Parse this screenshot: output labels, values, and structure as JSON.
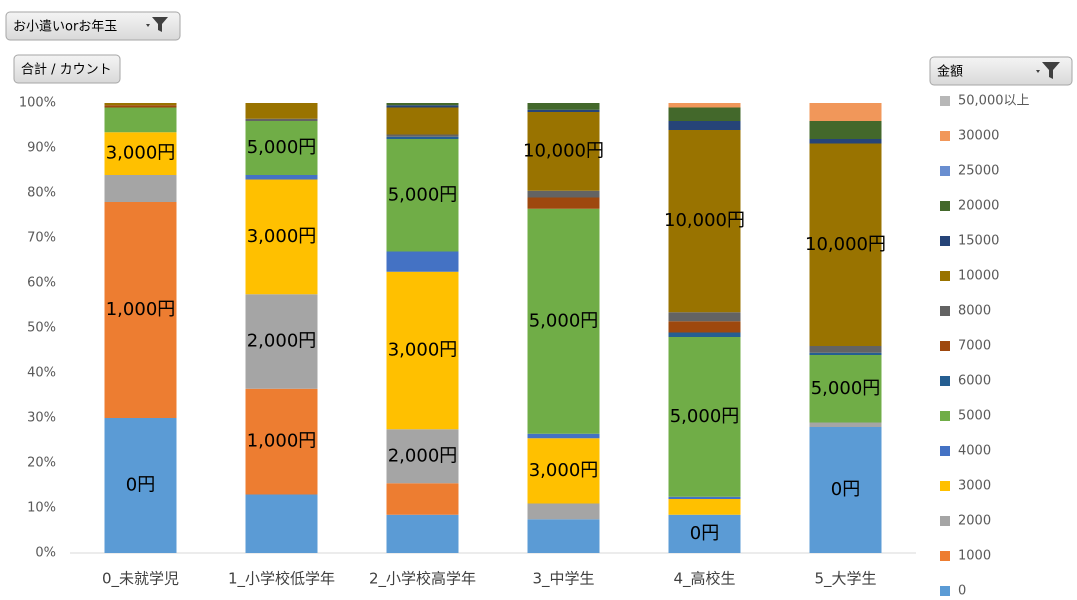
{
  "chart_data": {
    "type": "stacked_bar_100",
    "filter_button": "お小遣いorお年玉",
    "value_button": "合計 / カウント",
    "legend_button": "金額",
    "categories": [
      "0_未就学児",
      "1_小学校低学年",
      "2_小学校高学年",
      "3_中学生",
      "4_高校生",
      "5_大学生"
    ],
    "ylim": [
      0,
      100
    ],
    "yticks": [
      {
        "value": 0,
        "label": "0%"
      },
      {
        "value": 10,
        "label": "10%"
      },
      {
        "value": 20,
        "label": "20%"
      },
      {
        "value": 30,
        "label": "30%"
      },
      {
        "value": 40,
        "label": "40%"
      },
      {
        "value": 50,
        "label": "50%"
      },
      {
        "value": 60,
        "label": "60%"
      },
      {
        "value": 70,
        "label": "70%"
      },
      {
        "value": 80,
        "label": "80%"
      },
      {
        "value": 90,
        "label": "90%"
      },
      {
        "value": 100,
        "label": "100%"
      }
    ],
    "grid": false,
    "legend_position": "right",
    "series": [
      {
        "name": "0",
        "color": "#5b9bd5",
        "values": [
          30,
          13,
          8.5,
          7.5,
          8.5,
          28
        ],
        "labels": [
          "0円",
          null,
          null,
          null,
          "0円",
          "0円"
        ]
      },
      {
        "name": "1000",
        "color": "#ed7d31",
        "values": [
          48,
          23.5,
          7,
          0,
          0,
          0
        ],
        "labels": [
          "1,000円",
          "1,000円",
          null,
          null,
          null,
          null
        ]
      },
      {
        "name": "2000",
        "color": "#a5a5a5",
        "values": [
          6,
          21,
          12,
          3.5,
          0,
          1
        ],
        "labels": [
          null,
          "2,000円",
          "2,000円",
          null,
          null,
          null
        ]
      },
      {
        "name": "3000",
        "color": "#ffc000",
        "values": [
          9.5,
          25.5,
          35,
          14.5,
          3.5,
          0
        ],
        "labels": [
          "3,000円",
          "3,000円",
          "3,000円",
          "3,000円",
          null,
          null
        ]
      },
      {
        "name": "4000",
        "color": "#4472c4",
        "values": [
          0,
          1,
          4.5,
          1,
          0.5,
          0
        ]
      },
      {
        "name": "5000",
        "color": "#70ad47",
        "values": [
          5.5,
          12,
          25,
          50,
          35.5,
          15
        ],
        "labels": [
          null,
          "5,000円",
          "5,000円",
          "5,000円",
          "5,000円",
          "5,000円"
        ]
      },
      {
        "name": "6000",
        "color": "#255e91",
        "values": [
          0,
          0,
          0.5,
          0,
          1,
          0.5
        ]
      },
      {
        "name": "7000",
        "color": "#9e480e",
        "values": [
          0.5,
          0,
          0,
          2.5,
          2.5,
          0
        ]
      },
      {
        "name": "8000",
        "color": "#636363",
        "values": [
          0,
          0.5,
          0.5,
          1.5,
          2,
          1.5
        ]
      },
      {
        "name": "10000",
        "color": "#997300",
        "values": [
          0.5,
          3.5,
          6,
          17.5,
          40.5,
          45
        ],
        "labels": [
          null,
          null,
          null,
          "10,000円",
          "10,000円",
          "10,000円"
        ]
      },
      {
        "name": "15000",
        "color": "#264478",
        "values": [
          0,
          0,
          0.5,
          0.5,
          2,
          1
        ]
      },
      {
        "name": "20000",
        "color": "#43682b",
        "values": [
          0,
          0,
          0.5,
          1.5,
          3,
          4
        ]
      },
      {
        "name": "25000",
        "color": "#698ed0",
        "values": [
          0,
          0,
          0,
          0,
          0,
          0
        ]
      },
      {
        "name": "30000",
        "color": "#f1975a",
        "values": [
          0,
          0,
          0,
          0,
          1,
          4
        ]
      },
      {
        "name": "50,000以上",
        "color": "#b7b7b7",
        "values": [
          0,
          0,
          0,
          0,
          0,
          0
        ]
      }
    ]
  }
}
